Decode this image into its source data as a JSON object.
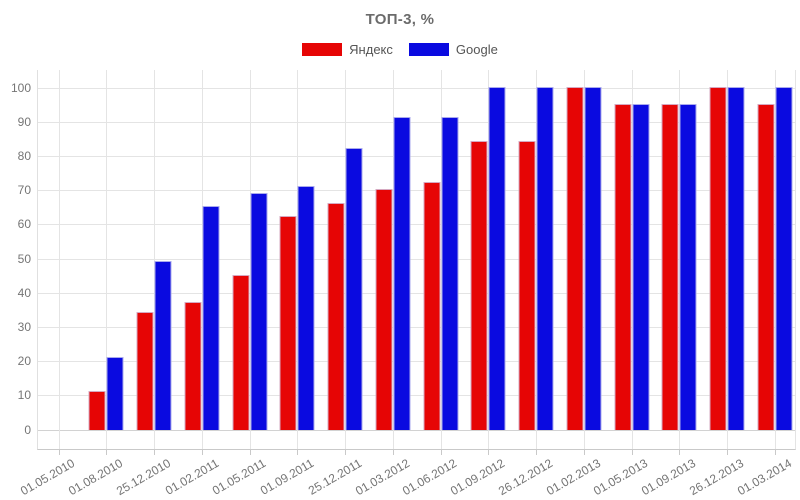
{
  "chart_data": {
    "type": "bar",
    "title": "ТОП-3, %",
    "categories": [
      "01.05.2010",
      "01.08.2010",
      "25.12.2010",
      "01.02.2011",
      "01.05.2011",
      "01.09.2011",
      "25.12.2011",
      "01.03.2012",
      "01.06.2012",
      "01.09.2012",
      "26.12.2012",
      "01.02.2013",
      "01.05.2013",
      "01.09.2013",
      "26.12.2013",
      "01.03.2014"
    ],
    "series": [
      {
        "name": "Яндекс",
        "color": "#e60505",
        "values": [
          null,
          11,
          34,
          37,
          45,
          62,
          66,
          70,
          72,
          84,
          84,
          100,
          95,
          95,
          100,
          95
        ]
      },
      {
        "name": "Google",
        "color": "#0a0ae0",
        "values": [
          null,
          21,
          49,
          65,
          69,
          71,
          82,
          91,
          91,
          100,
          100,
          100,
          95,
          95,
          100,
          100
        ]
      }
    ],
    "xlabel": "",
    "ylabel": "",
    "ylim": [
      0,
      100
    ],
    "yticks": [
      0,
      10,
      20,
      30,
      40,
      50,
      60,
      70,
      80,
      90,
      100
    ],
    "legend_position": "top",
    "grid": true
  },
  "colors": {
    "grid": "#e4e4e4",
    "axis": "#c9c9c9",
    "axis_text": "#757575",
    "title_text": "#6b6b6b",
    "legend_text": "#555555",
    "background": "#ffffff"
  }
}
